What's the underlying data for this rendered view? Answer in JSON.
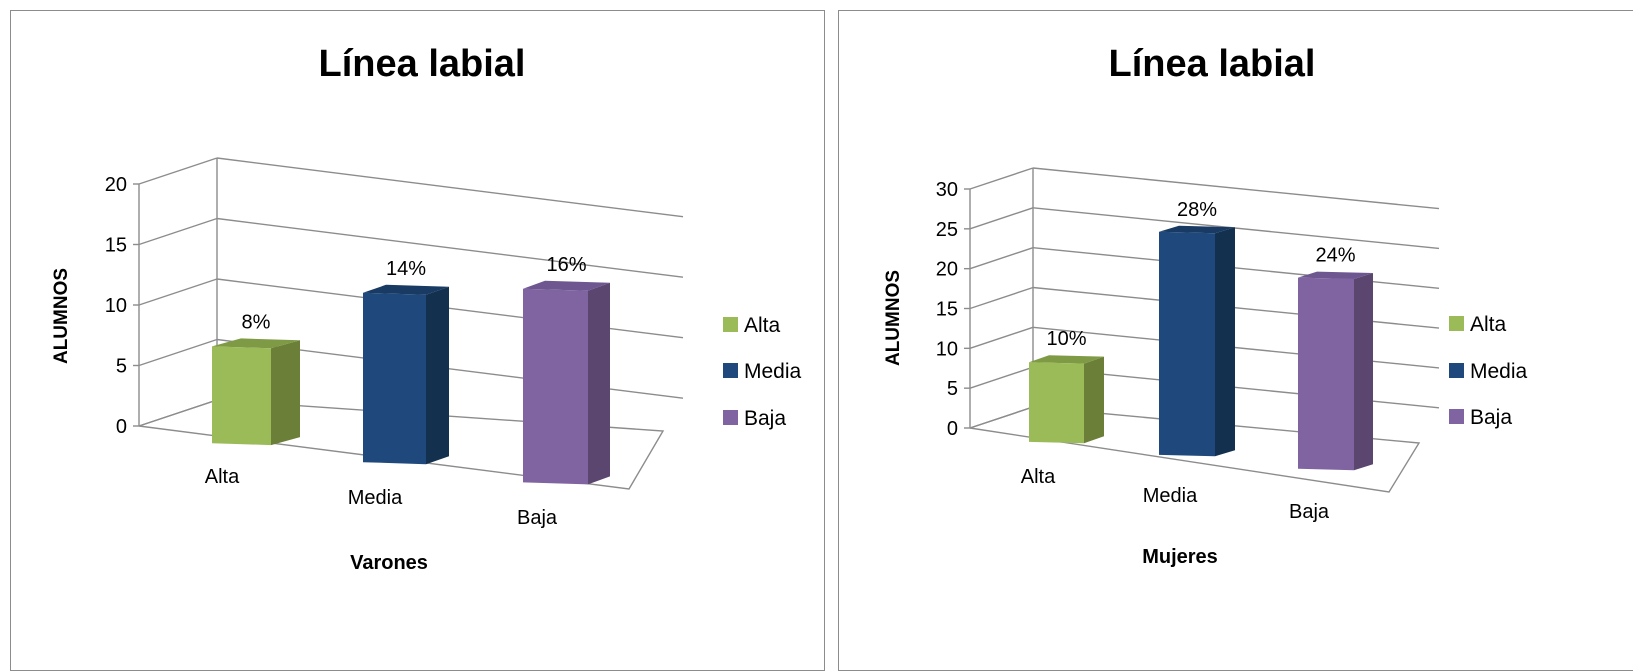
{
  "chart_data": [
    {
      "type": "bar",
      "title": "Línea labial",
      "xlabel": "Varones",
      "ylabel": "ALUMNOS",
      "categories": [
        "Alta",
        "Media",
        "Baja"
      ],
      "values": [
        8,
        14,
        16
      ],
      "data_labels": [
        "8%",
        "14%",
        "16%"
      ],
      "ylim": [
        0,
        20
      ],
      "yticks": [
        0,
        5,
        10,
        15,
        20
      ],
      "grid": true,
      "legend_position": "right",
      "legend": [
        "Alta",
        "Media",
        "Baja"
      ]
    },
    {
      "type": "bar",
      "title": "Línea labial",
      "xlabel": "Mujeres",
      "ylabel": "ALUMNOS",
      "categories": [
        "Alta",
        "Media",
        "Baja"
      ],
      "values": [
        10,
        28,
        24
      ],
      "data_labels": [
        "10%",
        "28%",
        "24%"
      ],
      "ylim": [
        0,
        30
      ],
      "yticks": [
        0,
        5,
        10,
        15,
        20,
        25,
        30
      ],
      "grid": true,
      "legend_position": "right",
      "legend": [
        "Alta",
        "Media",
        "Baja"
      ]
    }
  ],
  "colors": {
    "Alta": {
      "front": "#9bbb59",
      "side": "#6b7f38",
      "top": "#7f9a45"
    },
    "Media": {
      "front": "#1f497d",
      "side": "#14304f",
      "top": "#183a63"
    },
    "Baja": {
      "front": "#8064a2",
      "side": "#5a466f",
      "top": "#6e5690"
    }
  }
}
